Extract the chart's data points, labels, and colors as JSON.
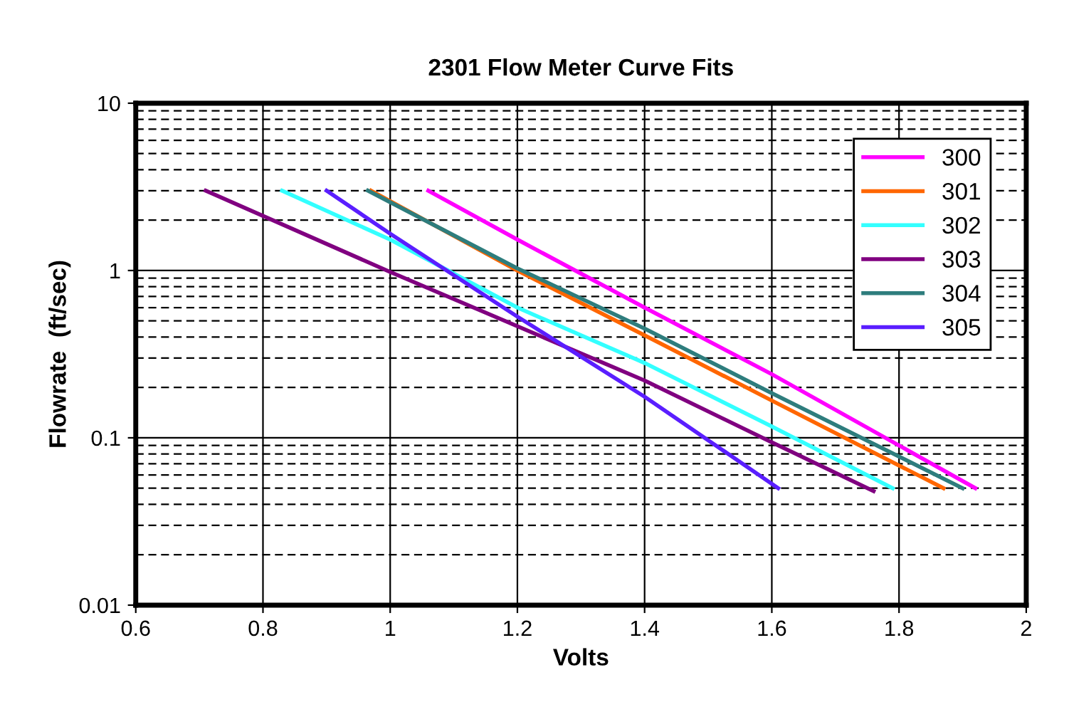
{
  "chart_data": {
    "type": "line",
    "title": "2301 Flow Meter Curve Fits",
    "xlabel": "Volts",
    "ylabel": "Flowrate  (ft/sec)",
    "log": "y",
    "grid": true,
    "legend": "top right",
    "marker": "none",
    "line_style": "solid",
    "xlim": [
      0.6,
      2
    ],
    "xticks": [
      0.6,
      0.8,
      1,
      1.2,
      1.4,
      1.6,
      1.8,
      2
    ],
    "ylim": [
      0.01,
      10
    ],
    "yticks": [
      0.01,
      0.1,
      1,
      10
    ],
    "series": [
      {
        "name": "300",
        "color": "#ff00ff",
        "x": [
          1.06,
          1.2,
          1.4,
          1.6,
          1.92
        ],
        "values": [
          3,
          1.53,
          0.6,
          0.24,
          0.05
        ]
      },
      {
        "name": "301",
        "color": "#ff6600",
        "x": [
          0.97,
          1.2,
          1.4,
          1.6,
          1.87
        ],
        "values": [
          3,
          1.0,
          0.41,
          0.167,
          0.05
        ]
      },
      {
        "name": "302",
        "color": "#33ffff",
        "x": [
          0.83,
          1.0,
          1.2,
          1.4,
          1.6,
          1.79
        ],
        "values": [
          3,
          1.53,
          0.6,
          0.28,
          0.117,
          0.05
        ]
      },
      {
        "name": "303",
        "color": "#800080",
        "x": [
          0.71,
          1.0,
          1.4,
          1.6,
          1.76
        ],
        "values": [
          3,
          0.98,
          0.22,
          0.094,
          0.048
        ]
      },
      {
        "name": "304",
        "color": "#2e7d7d",
        "x": [
          0.965,
          1.2,
          1.4,
          1.6,
          1.9
        ],
        "values": [
          3,
          1.03,
          0.45,
          0.185,
          0.05
        ]
      },
      {
        "name": "305",
        "color": "#5a1eff",
        "x": [
          0.9,
          1.0,
          1.2,
          1.4,
          1.61
        ],
        "values": [
          3,
          1.66,
          0.53,
          0.176,
          0.05
        ]
      }
    ]
  }
}
